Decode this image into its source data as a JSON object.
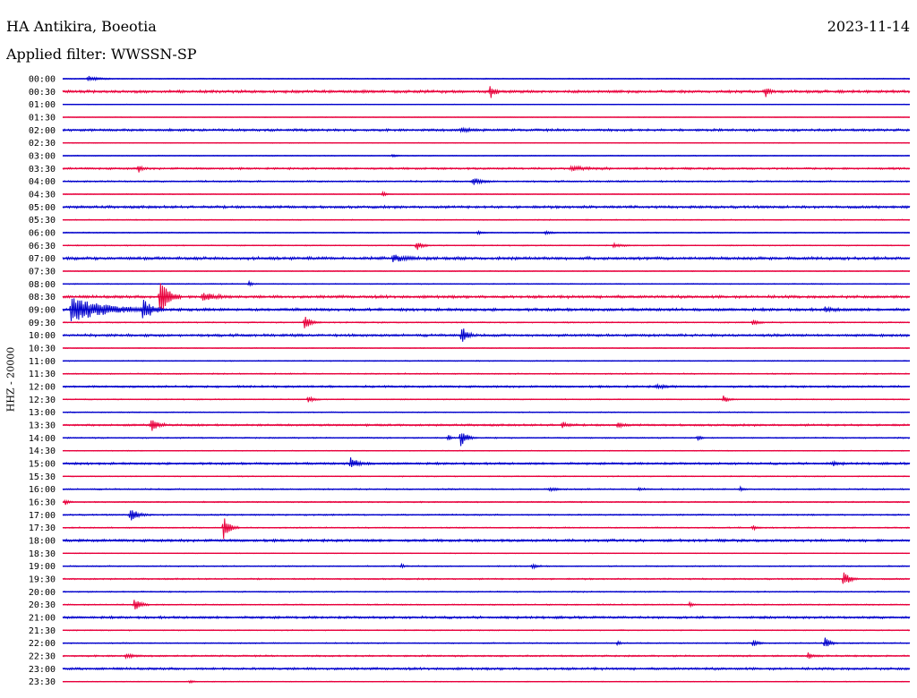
{
  "header": {
    "station": "HA Antikira, Boeotia",
    "date": "2023-11-14",
    "filter": "Applied filter: WWSSN-SP"
  },
  "colors": {
    "blue": "#0000cc",
    "red": "#e8003c"
  },
  "chart_data": {
    "type": "line",
    "title": "HA Antikira, Boeotia",
    "subtitle": "Applied filter: WWSSN-SP",
    "xlabel": "",
    "ylabel": "HHZ - 20000",
    "traces": [
      {
        "label": "00:00",
        "color": "blue",
        "noise": 0.5,
        "events": [
          {
            "t": 0.03,
            "amp": 3,
            "dur": 0.01
          }
        ]
      },
      {
        "label": "00:30",
        "color": "red",
        "noise": 1.4,
        "events": [
          {
            "t": 0.505,
            "amp": 7,
            "dur": 0.004
          },
          {
            "t": 0.83,
            "amp": 5,
            "dur": 0.004
          }
        ]
      },
      {
        "label": "01:00",
        "color": "blue",
        "noise": 0.3,
        "events": []
      },
      {
        "label": "01:30",
        "color": "red",
        "noise": 0.3,
        "events": []
      },
      {
        "label": "02:00",
        "color": "blue",
        "noise": 1.2,
        "events": [
          {
            "t": 0.47,
            "amp": 2,
            "dur": 0.01
          }
        ]
      },
      {
        "label": "02:30",
        "color": "red",
        "noise": 0.4,
        "events": []
      },
      {
        "label": "03:00",
        "color": "blue",
        "noise": 0.4,
        "events": [
          {
            "t": 0.39,
            "amp": 2,
            "dur": 0.004
          }
        ]
      },
      {
        "label": "03:30",
        "color": "red",
        "noise": 1.0,
        "events": [
          {
            "t": 0.09,
            "amp": 5,
            "dur": 0.003
          },
          {
            "t": 0.6,
            "amp": 2,
            "dur": 0.02
          }
        ]
      },
      {
        "label": "04:00",
        "color": "blue",
        "noise": 0.8,
        "events": [
          {
            "t": 0.485,
            "amp": 4,
            "dur": 0.008
          }
        ]
      },
      {
        "label": "04:30",
        "color": "red",
        "noise": 0.4,
        "events": [
          {
            "t": 0.378,
            "amp": 3,
            "dur": 0.003
          }
        ]
      },
      {
        "label": "05:00",
        "color": "blue",
        "noise": 1.3,
        "events": []
      },
      {
        "label": "05:30",
        "color": "red",
        "noise": 0.5,
        "events": []
      },
      {
        "label": "06:00",
        "color": "blue",
        "noise": 0.5,
        "events": [
          {
            "t": 0.49,
            "amp": 2,
            "dur": 0.004
          },
          {
            "t": 0.57,
            "amp": 2,
            "dur": 0.006
          }
        ]
      },
      {
        "label": "06:30",
        "color": "red",
        "noise": 0.5,
        "events": [
          {
            "t": 0.418,
            "amp": 5,
            "dur": 0.006
          },
          {
            "t": 0.65,
            "amp": 2,
            "dur": 0.01
          }
        ]
      },
      {
        "label": "07:00",
        "color": "blue",
        "noise": 1.5,
        "events": [
          {
            "t": 0.39,
            "amp": 3,
            "dur": 0.015
          }
        ]
      },
      {
        "label": "07:30",
        "color": "red",
        "noise": 0.4,
        "events": []
      },
      {
        "label": "08:00",
        "color": "blue",
        "noise": 0.5,
        "events": [
          {
            "t": 0.22,
            "amp": 3,
            "dur": 0.003
          }
        ]
      },
      {
        "label": "08:30",
        "color": "red",
        "noise": 1.4,
        "events": [
          {
            "t": 0.115,
            "amp": 24,
            "dur": 0.008
          },
          {
            "t": 0.165,
            "amp": 5,
            "dur": 0.012
          }
        ]
      },
      {
        "label": "09:00",
        "color": "blue",
        "noise": 1.4,
        "events": [
          {
            "t": 0.01,
            "amp": 14,
            "dur": 0.035
          },
          {
            "t": 0.095,
            "amp": 12,
            "dur": 0.008
          },
          {
            "t": 0.9,
            "amp": 2,
            "dur": 0.01
          }
        ]
      },
      {
        "label": "09:30",
        "color": "red",
        "noise": 0.6,
        "events": [
          {
            "t": 0.286,
            "amp": 8,
            "dur": 0.006
          },
          {
            "t": 0.815,
            "amp": 3,
            "dur": 0.005
          }
        ]
      },
      {
        "label": "10:00",
        "color": "blue",
        "noise": 1.3,
        "events": [
          {
            "t": 0.471,
            "amp": 11,
            "dur": 0.005
          }
        ]
      },
      {
        "label": "10:30",
        "color": "red",
        "noise": 0.4,
        "events": []
      },
      {
        "label": "11:00",
        "color": "blue",
        "noise": 0.5,
        "events": []
      },
      {
        "label": "11:30",
        "color": "red",
        "noise": 0.6,
        "events": []
      },
      {
        "label": "12:00",
        "color": "blue",
        "noise": 1.0,
        "events": [
          {
            "t": 0.7,
            "amp": 2,
            "dur": 0.01
          }
        ]
      },
      {
        "label": "12:30",
        "color": "red",
        "noise": 0.5,
        "events": [
          {
            "t": 0.29,
            "amp": 4,
            "dur": 0.005
          },
          {
            "t": 0.78,
            "amp": 4,
            "dur": 0.005
          }
        ]
      },
      {
        "label": "13:00",
        "color": "blue",
        "noise": 0.5,
        "events": []
      },
      {
        "label": "13:30",
        "color": "red",
        "noise": 1.0,
        "events": [
          {
            "t": 0.105,
            "amp": 9,
            "dur": 0.006
          },
          {
            "t": 0.59,
            "amp": 3,
            "dur": 0.006
          },
          {
            "t": 0.655,
            "amp": 3,
            "dur": 0.005
          }
        ]
      },
      {
        "label": "14:00",
        "color": "blue",
        "noise": 0.6,
        "events": [
          {
            "t": 0.47,
            "amp": 11,
            "dur": 0.006
          },
          {
            "t": 0.455,
            "amp": 3,
            "dur": 0.004
          },
          {
            "t": 0.75,
            "amp": 3,
            "dur": 0.003
          }
        ]
      },
      {
        "label": "14:30",
        "color": "red",
        "noise": 0.4,
        "events": []
      },
      {
        "label": "15:00",
        "color": "blue",
        "noise": 1.1,
        "events": [
          {
            "t": 0.34,
            "amp": 6,
            "dur": 0.008
          },
          {
            "t": 0.91,
            "amp": 2,
            "dur": 0.006
          }
        ]
      },
      {
        "label": "15:30",
        "color": "red",
        "noise": 0.5,
        "events": []
      },
      {
        "label": "16:00",
        "color": "blue",
        "noise": 0.7,
        "events": [
          {
            "t": 0.575,
            "amp": 2,
            "dur": 0.006
          },
          {
            "t": 0.68,
            "amp": 2,
            "dur": 0.005
          },
          {
            "t": 0.8,
            "amp": 2,
            "dur": 0.004
          }
        ]
      },
      {
        "label": "16:30",
        "color": "red",
        "noise": 0.6,
        "events": [
          {
            "t": 0.003,
            "amp": 4,
            "dur": 0.003
          }
        ]
      },
      {
        "label": "17:00",
        "color": "blue",
        "noise": 0.7,
        "events": [
          {
            "t": 0.08,
            "amp": 7,
            "dur": 0.008
          }
        ]
      },
      {
        "label": "17:30",
        "color": "red",
        "noise": 0.6,
        "events": [
          {
            "t": 0.19,
            "amp": 14,
            "dur": 0.006
          },
          {
            "t": 0.815,
            "amp": 3,
            "dur": 0.003
          }
        ]
      },
      {
        "label": "18:00",
        "color": "blue",
        "noise": 1.3,
        "events": []
      },
      {
        "label": "18:30",
        "color": "red",
        "noise": 0.4,
        "events": []
      },
      {
        "label": "19:00",
        "color": "blue",
        "noise": 0.6,
        "events": [
          {
            "t": 0.4,
            "amp": 2,
            "dur": 0.003
          },
          {
            "t": 0.555,
            "amp": 3,
            "dur": 0.004
          }
        ]
      },
      {
        "label": "19:30",
        "color": "red",
        "noise": 0.7,
        "events": [
          {
            "t": 0.922,
            "amp": 9,
            "dur": 0.006
          }
        ]
      },
      {
        "label": "20:00",
        "color": "blue",
        "noise": 0.6,
        "events": []
      },
      {
        "label": "20:30",
        "color": "red",
        "noise": 0.6,
        "events": [
          {
            "t": 0.085,
            "amp": 7,
            "dur": 0.006
          },
          {
            "t": 0.74,
            "amp": 2,
            "dur": 0.004
          }
        ]
      },
      {
        "label": "21:00",
        "color": "blue",
        "noise": 1.2,
        "events": []
      },
      {
        "label": "21:30",
        "color": "red",
        "noise": 0.5,
        "events": []
      },
      {
        "label": "22:00",
        "color": "blue",
        "noise": 0.6,
        "events": [
          {
            "t": 0.655,
            "amp": 2,
            "dur": 0.003
          },
          {
            "t": 0.815,
            "amp": 4,
            "dur": 0.005
          },
          {
            "t": 0.9,
            "amp": 6,
            "dur": 0.005
          }
        ]
      },
      {
        "label": "22:30",
        "color": "red",
        "noise": 0.8,
        "events": [
          {
            "t": 0.075,
            "amp": 3,
            "dur": 0.006
          },
          {
            "t": 0.88,
            "amp": 3,
            "dur": 0.006
          }
        ]
      },
      {
        "label": "23:00",
        "color": "blue",
        "noise": 1.2,
        "events": []
      },
      {
        "label": "23:30",
        "color": "red",
        "noise": 0.4,
        "events": [
          {
            "t": 0.15,
            "amp": 2,
            "dur": 0.003
          }
        ]
      }
    ]
  }
}
